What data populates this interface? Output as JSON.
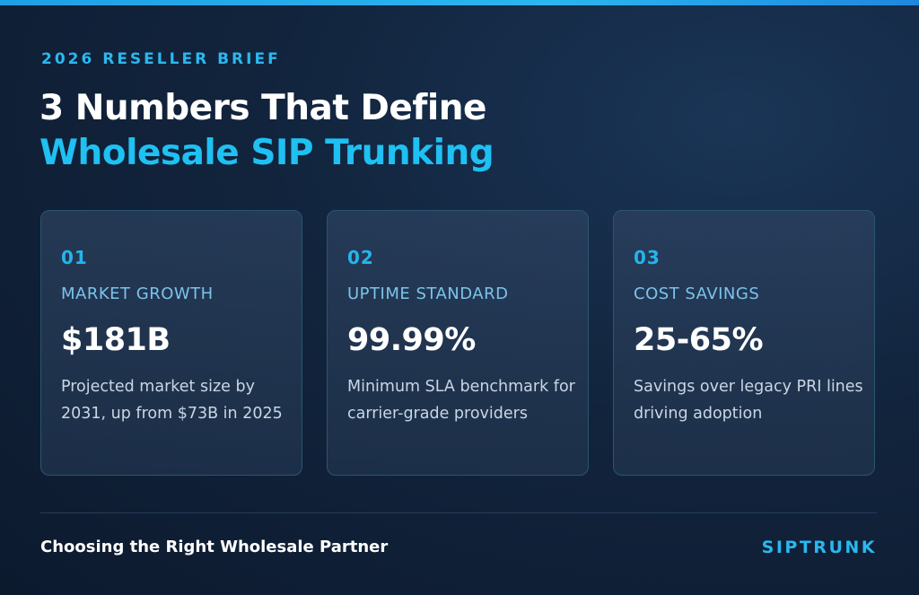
{
  "header": {
    "eyebrow": "2026 RESELLER BRIEF",
    "title_line1": "3 Numbers That Define",
    "title_line2": "Wholesale SIP Trunking"
  },
  "cards": [
    {
      "number": "01",
      "label": "MARKET GROWTH",
      "value": "$181B",
      "description": "Projected market size by 2031, up from $73B in 2025"
    },
    {
      "number": "02",
      "label": "UPTIME STANDARD",
      "value": "99.99%",
      "description": "Minimum SLA benchmark for carrier-grade providers"
    },
    {
      "number": "03",
      "label": "COST SAVINGS",
      "value": "25-65%",
      "description": "Savings over legacy PRI lines driving adoption"
    }
  ],
  "footer": {
    "tagline": "Choosing the Right Wholesale Partner",
    "brand": "SIPTRUNK"
  },
  "colors": {
    "accent": "#1fc0f2",
    "background": "#12243d",
    "card_border": "#2a5670"
  }
}
